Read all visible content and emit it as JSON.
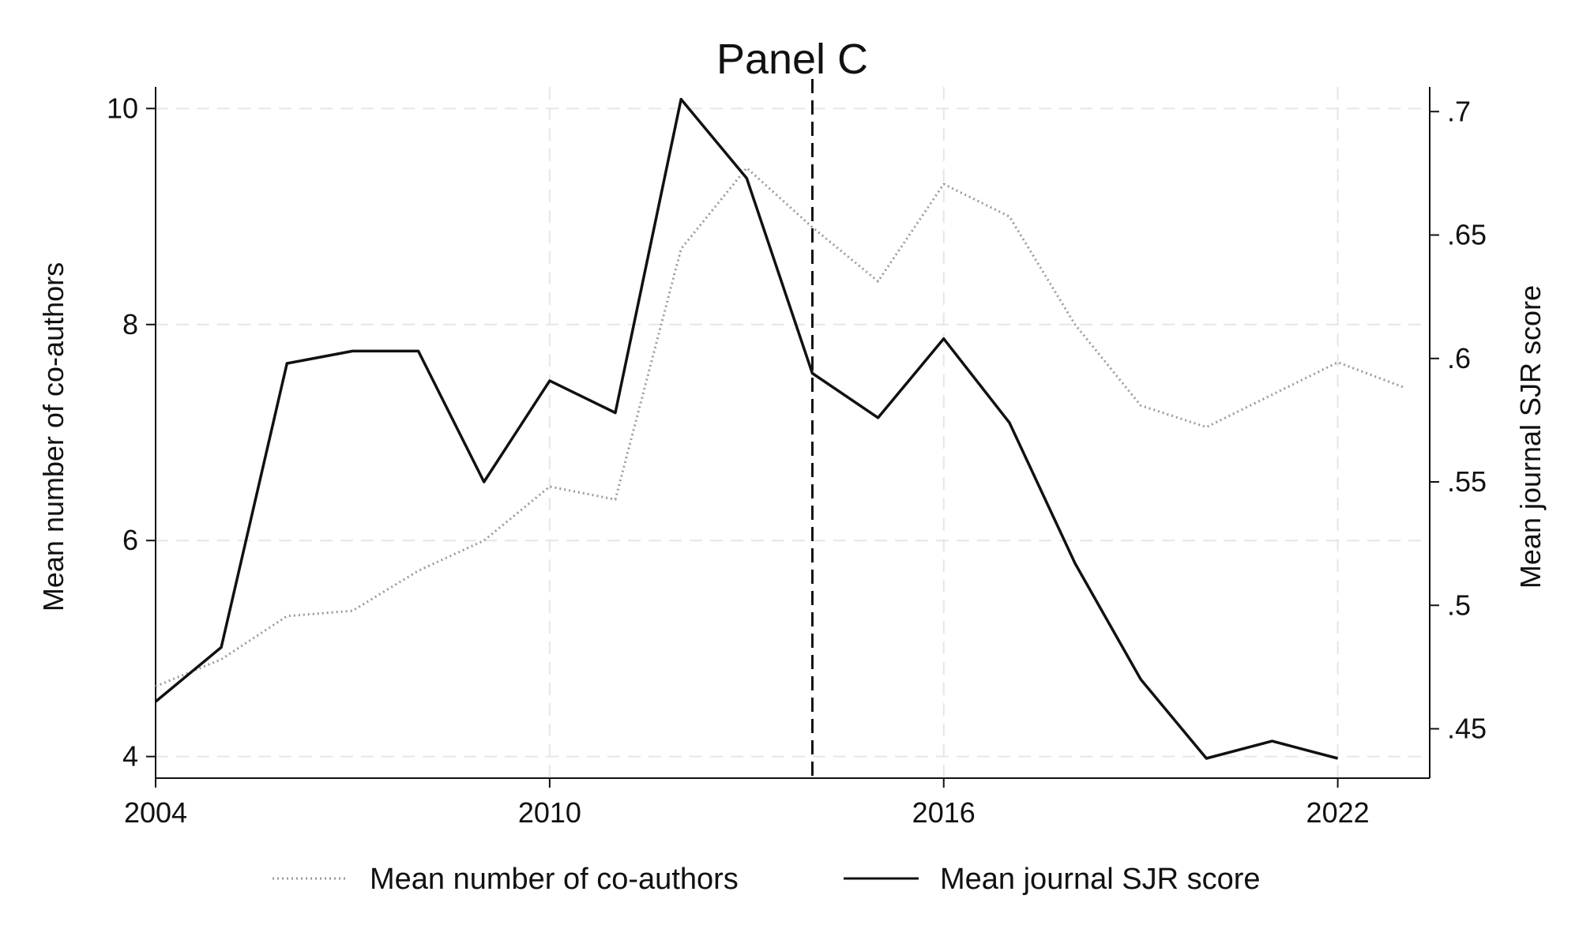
{
  "chart_data": {
    "type": "line",
    "title": "Panel C",
    "ylabel_left": "Mean number of co-authors",
    "ylabel_right": "Mean journal SJR score",
    "xlabel": "",
    "x_ticks": [
      2004,
      2010,
      2016,
      2022
    ],
    "y_left_ticks": [
      4,
      6,
      8,
      10
    ],
    "y_left_tick_labels": [
      "4",
      "6",
      "8",
      "10"
    ],
    "y_left_range": [
      3.8,
      10.2
    ],
    "y_right_ticks": [
      0.45,
      0.5,
      0.55,
      0.6,
      0.65,
      0.7
    ],
    "y_right_tick_labels": [
      ".45",
      ".5",
      ".55",
      ".6",
      ".65",
      ".7"
    ],
    "y_right_range": [
      0.43,
      0.71
    ],
    "x_range": [
      2004,
      2023.4
    ],
    "grid": true,
    "legend_position": "bottom",
    "reference_line": {
      "x": 2014,
      "style": "dashed"
    },
    "series": [
      {
        "name": "Mean number of co-authors",
        "axis": "left",
        "style": "dotted",
        "x": [
          2004,
          2005,
          2006,
          2007,
          2008,
          2009,
          2010,
          2011,
          2012,
          2013,
          2014,
          2015,
          2016,
          2017,
          2018,
          2019,
          2020,
          2021,
          2022,
          2023
        ],
        "values": [
          4.65,
          4.9,
          5.3,
          5.35,
          5.72,
          6.0,
          6.5,
          6.38,
          8.7,
          9.45,
          8.9,
          8.4,
          9.3,
          9.0,
          8.0,
          7.25,
          7.05,
          7.35,
          7.65,
          7.42
        ]
      },
      {
        "name": "Mean journal SJR score",
        "axis": "right",
        "style": "solid",
        "x": [
          2004,
          2005,
          2006,
          2007,
          2008,
          2009,
          2010,
          2011,
          2012,
          2013,
          2014,
          2015,
          2016,
          2017,
          2018,
          2019,
          2020,
          2021,
          2022
        ],
        "values": [
          0.461,
          0.483,
          0.598,
          0.603,
          0.603,
          0.55,
          0.591,
          0.578,
          0.705,
          0.673,
          0.594,
          0.576,
          0.608,
          0.574,
          0.517,
          0.47,
          0.438,
          0.445,
          0.438
        ]
      }
    ]
  }
}
